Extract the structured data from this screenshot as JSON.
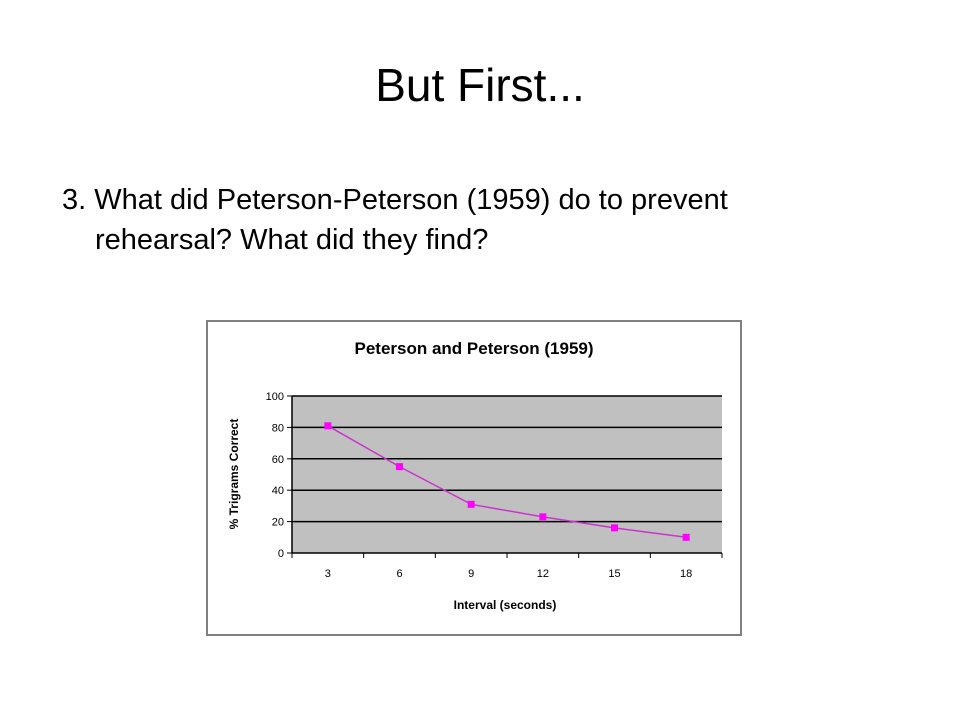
{
  "slide": {
    "title": "But First...",
    "question": "3. What did Peterson-Peterson (1959) do to prevent rehearsal? What did they find?"
  },
  "chart_data": {
    "type": "line",
    "title": "Peterson and Peterson (1959)",
    "xlabel": "Interval (seconds)",
    "ylabel": "% Trigrams Correct",
    "categories": [
      "3",
      "6",
      "9",
      "12",
      "15",
      "18"
    ],
    "series": [
      {
        "values": [
          81,
          55,
          31,
          23,
          16,
          10
        ]
      }
    ],
    "ylim": [
      0,
      100
    ],
    "yticks": [
      0,
      20,
      40,
      60,
      80,
      100
    ],
    "grid": true,
    "legend": "none",
    "colors": {
      "line": "#cc33cc",
      "marker": "#ff00ff",
      "plot_area": "#c0c0c0",
      "gridline": "#000000",
      "frame": "#808080"
    }
  }
}
